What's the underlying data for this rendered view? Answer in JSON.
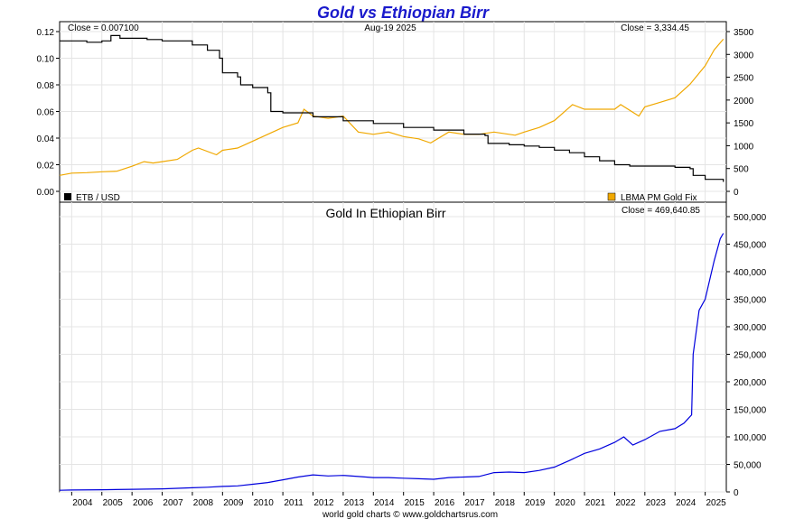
{
  "chart_data": [
    {
      "type": "line",
      "title": "Gold vs Ethiopian Birr",
      "date_label": "Aug-19  2025",
      "left_close_label": "Close = 0.007100",
      "right_close_label": "Close = 3,334.45",
      "left_axis": {
        "ylim": [
          0,
          0.12
        ],
        "ticks": [
          "0.00",
          "0.02",
          "0.04",
          "0.06",
          "0.08",
          "0.10",
          "0.12"
        ]
      },
      "right_axis": {
        "ylim": [
          0,
          3500
        ],
        "ticks": [
          "0",
          "500",
          "1000",
          "1500",
          "2000",
          "2500",
          "3000",
          "3500"
        ]
      },
      "series": [
        {
          "name": "ETB / USD",
          "axis": "left",
          "color": "#000000",
          "x": [
            2003.6,
            2004.5,
            2005.0,
            2005.3,
            2005.6,
            2006.5,
            2007.0,
            2007.5,
            2008.0,
            2008.5,
            2008.9,
            2009.0,
            2009.5,
            2009.6,
            2010.0,
            2010.5,
            2010.6,
            2011.0,
            2012.0,
            2013.0,
            2014.0,
            2015.0,
            2016.0,
            2017.0,
            2017.7,
            2017.8,
            2018.5,
            2019.0,
            2019.5,
            2020.0,
            2020.5,
            2021.0,
            2021.5,
            2022.0,
            2022.5,
            2023.0,
            2024.0,
            2024.5,
            2024.6,
            2025.0,
            2025.6
          ],
          "values": [
            0.113,
            0.112,
            0.113,
            0.117,
            0.115,
            0.114,
            0.113,
            0.113,
            0.11,
            0.106,
            0.1,
            0.089,
            0.086,
            0.08,
            0.078,
            0.074,
            0.06,
            0.059,
            0.056,
            0.053,
            0.051,
            0.048,
            0.046,
            0.043,
            0.042,
            0.036,
            0.035,
            0.034,
            0.033,
            0.031,
            0.029,
            0.026,
            0.023,
            0.02,
            0.019,
            0.019,
            0.018,
            0.017,
            0.012,
            0.009,
            0.0071
          ]
        },
        {
          "name": "LBMA PM Gold Fix",
          "axis": "right",
          "color": "#f0a800",
          "x": [
            2003.6,
            2004.0,
            2004.5,
            2005.0,
            2005.5,
            2006.0,
            2006.4,
            2006.7,
            2007.0,
            2007.5,
            2008.0,
            2008.2,
            2008.8,
            2009.0,
            2009.5,
            2010.0,
            2010.5,
            2011.0,
            2011.5,
            2011.7,
            2012.0,
            2012.5,
            2013.0,
            2013.5,
            2014.0,
            2014.5,
            2015.0,
            2015.5,
            2015.9,
            2016.5,
            2017.0,
            2017.5,
            2018.0,
            2018.7,
            2019.0,
            2019.5,
            2020.0,
            2020.6,
            2021.0,
            2021.5,
            2022.0,
            2022.2,
            2022.8,
            2023.0,
            2023.5,
            2024.0,
            2024.5,
            2025.0,
            2025.3,
            2025.6
          ],
          "values": [
            350,
            400,
            410,
            430,
            440,
            550,
            650,
            620,
            650,
            700,
            900,
            950,
            800,
            900,
            950,
            1100,
            1250,
            1400,
            1500,
            1800,
            1650,
            1600,
            1650,
            1300,
            1250,
            1300,
            1200,
            1150,
            1060,
            1300,
            1250,
            1250,
            1300,
            1230,
            1300,
            1400,
            1550,
            1900,
            1800,
            1800,
            1800,
            1900,
            1650,
            1850,
            1950,
            2050,
            2350,
            2750,
            3100,
            3334.45
          ]
        }
      ],
      "legend_left": "ETB / USD",
      "legend_right": "LBMA PM Gold Fix"
    },
    {
      "type": "line",
      "title": "Gold In Ethiopian Birr",
      "close_label": "Close = 469,640.85",
      "y_axis": {
        "ylim": [
          0,
          500000
        ],
        "ticks": [
          "0",
          "50,000",
          "100,000",
          "150,000",
          "200,000",
          "250,000",
          "300,000",
          "350,000",
          "400,000",
          "450,000",
          "500,000"
        ]
      },
      "x_ticks": [
        "2004",
        "2005",
        "2006",
        "2007",
        "2008",
        "2009",
        "2010",
        "2011",
        "2012",
        "2013",
        "2014",
        "2015",
        "2016",
        "2017",
        "2018",
        "2019",
        "2020",
        "2021",
        "2022",
        "2023",
        "2024",
        "2025"
      ],
      "series": [
        {
          "color": "#0000dd",
          "x": [
            2003.6,
            2004.0,
            2005.0,
            2006.0,
            2007.0,
            2008.0,
            2008.5,
            2009.0,
            2009.5,
            2010.0,
            2010.5,
            2011.0,
            2011.5,
            2012.0,
            2012.5,
            2013.0,
            2013.5,
            2014.0,
            2014.5,
            2015.0,
            2015.5,
            2016.0,
            2016.5,
            2017.0,
            2017.5,
            2018.0,
            2018.5,
            2019.0,
            2019.5,
            2020.0,
            2020.5,
            2021.0,
            2021.5,
            2022.0,
            2022.3,
            2022.6,
            2023.0,
            2023.5,
            2024.0,
            2024.3,
            2024.55,
            2024.6,
            2024.8,
            2025.0,
            2025.3,
            2025.5,
            2025.6
          ],
          "values": [
            3000,
            3500,
            4000,
            4800,
            5600,
            7500,
            8500,
            10000,
            11000,
            14000,
            17000,
            22000,
            27000,
            31000,
            29000,
            30000,
            28000,
            26000,
            26000,
            25000,
            24000,
            23000,
            26000,
            27000,
            28000,
            35000,
            36000,
            35000,
            39000,
            45000,
            57000,
            70000,
            78000,
            90000,
            100000,
            85000,
            95000,
            110000,
            115000,
            125000,
            140000,
            250000,
            330000,
            350000,
            420000,
            460000,
            469640.85
          ]
        }
      ]
    }
  ],
  "credit": "world gold charts © www.goldchartsrus.com"
}
